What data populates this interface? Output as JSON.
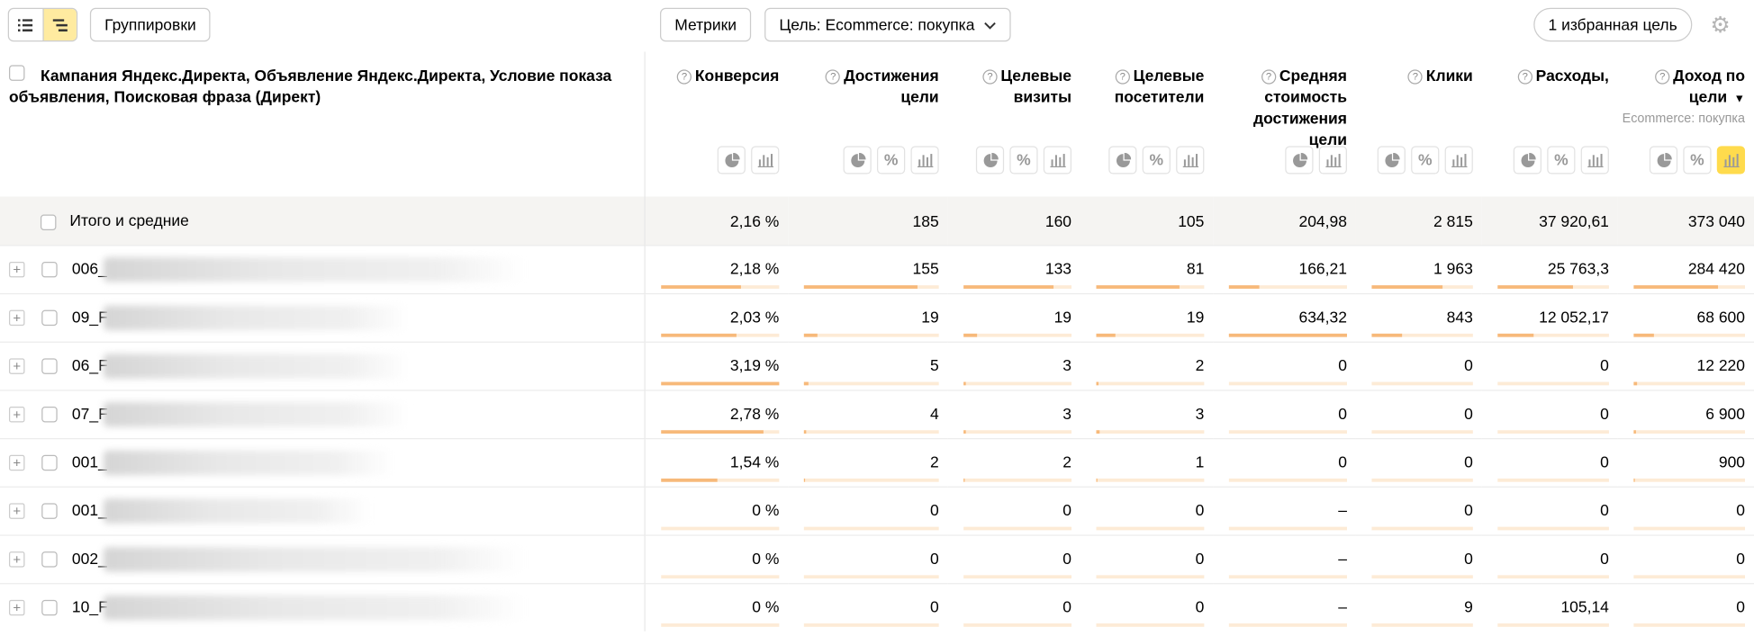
{
  "toolbar": {
    "groupings_label": "Группировки",
    "metrics_label": "Метрики",
    "goal_label": "Цель: Ecommerce: покупка",
    "favorite_label": "1 избранная цель"
  },
  "table": {
    "dimension_header": "Кампания Яндекс.Директа, Объявление Яндекс.Директа, Условие показа объявления, Поисковая фраза (Директ)",
    "columns": [
      {
        "label": "Конверсия",
        "sub": "",
        "icons": [
          "pie-icon",
          "bars-icon"
        ]
      },
      {
        "label": "Достижения цели",
        "sub": "",
        "icons": [
          "pie-icon",
          "percent-icon",
          "bars-icon"
        ]
      },
      {
        "label": "Целевые визиты",
        "sub": "",
        "icons": [
          "pie-icon",
          "percent-icon",
          "bars-icon"
        ]
      },
      {
        "label": "Целевые посетители",
        "sub": "",
        "icons": [
          "pie-icon",
          "percent-icon",
          "bars-icon"
        ]
      },
      {
        "label": "Средняя стоимость достижения цели",
        "sub": "",
        "icons": [
          "pie-icon",
          "bars-icon"
        ]
      },
      {
        "label": "Клики",
        "sub": "",
        "icons": [
          "pie-icon",
          "percent-icon",
          "bars-icon"
        ]
      },
      {
        "label": "Расходы,",
        "sub": "",
        "icons": [
          "pie-icon",
          "percent-icon",
          "bars-icon"
        ]
      },
      {
        "label": "Доход по цели",
        "sub": "Ecommerce: покупка",
        "icons": [
          "pie-icon",
          "percent-icon",
          "bars-icon"
        ]
      }
    ],
    "totals": {
      "label": "Итого и средние",
      "values": [
        "2,16 %",
        "185",
        "160",
        "105",
        "204,98",
        "2 815",
        "37 920,61",
        "373 040"
      ]
    },
    "rows": [
      {
        "prefix": "006_",
        "values": [
          "2,18 %",
          "155",
          "133",
          "81",
          "166,21",
          "1 963",
          "25 763,3",
          "284 420"
        ],
        "bars": [
          0.68,
          0.84,
          0.83,
          0.77,
          0.26,
          0.7,
          0.68,
          0.76
        ],
        "blur": 0.55
      },
      {
        "prefix": "09_F",
        "values": [
          "2,03 %",
          "19",
          "19",
          "19",
          "634,32",
          "843",
          "12 052,17",
          "68 600"
        ],
        "bars": [
          0.64,
          0.1,
          0.12,
          0.18,
          1.0,
          0.3,
          0.32,
          0.18
        ],
        "blur": 0.4
      },
      {
        "prefix": "06_F",
        "values": [
          "3,19 %",
          "5",
          "3",
          "2",
          "0",
          "0",
          "0",
          "12 220"
        ],
        "bars": [
          1.0,
          0.03,
          0.02,
          0.02,
          0,
          0,
          0,
          0.03
        ],
        "blur": 0.4
      },
      {
        "prefix": "07_F",
        "values": [
          "2,78 %",
          "4",
          "3",
          "3",
          "0",
          "0",
          "0",
          "6 900"
        ],
        "bars": [
          0.87,
          0.02,
          0.02,
          0.03,
          0,
          0,
          0,
          0.02
        ],
        "blur": 0.4
      },
      {
        "prefix": "001_",
        "values": [
          "1,54 %",
          "2",
          "2",
          "1",
          "0",
          "0",
          "0",
          "900"
        ],
        "bars": [
          0.48,
          0.01,
          0.01,
          0.01,
          0,
          0,
          0,
          0.005
        ],
        "blur": 0.38
      },
      {
        "prefix": "001_",
        "values": [
          "0 %",
          "0",
          "0",
          "0",
          "–",
          "0",
          "0",
          "0"
        ],
        "bars": [
          0,
          0,
          0,
          0,
          0,
          0,
          0,
          0
        ],
        "blur": 0.35
      },
      {
        "prefix": "002_",
        "values": [
          "0 %",
          "0",
          "0",
          "0",
          "–",
          "0",
          "0",
          "0"
        ],
        "bars": [
          0,
          0,
          0,
          0,
          0,
          0,
          0,
          0
        ],
        "blur": 0.55
      },
      {
        "prefix": "10_F",
        "values": [
          "0 %",
          "0",
          "0",
          "0",
          "–",
          "9",
          "105,14",
          "0"
        ],
        "bars": [
          0,
          0,
          0,
          0,
          0,
          0,
          0,
          0
        ],
        "blur": 0.55
      }
    ]
  },
  "colors": {
    "accent": "#ffdb4d",
    "bar_fill": "#f7b97a",
    "bar_track": "#fdebd6",
    "total_bg": "#f5f4f2"
  }
}
